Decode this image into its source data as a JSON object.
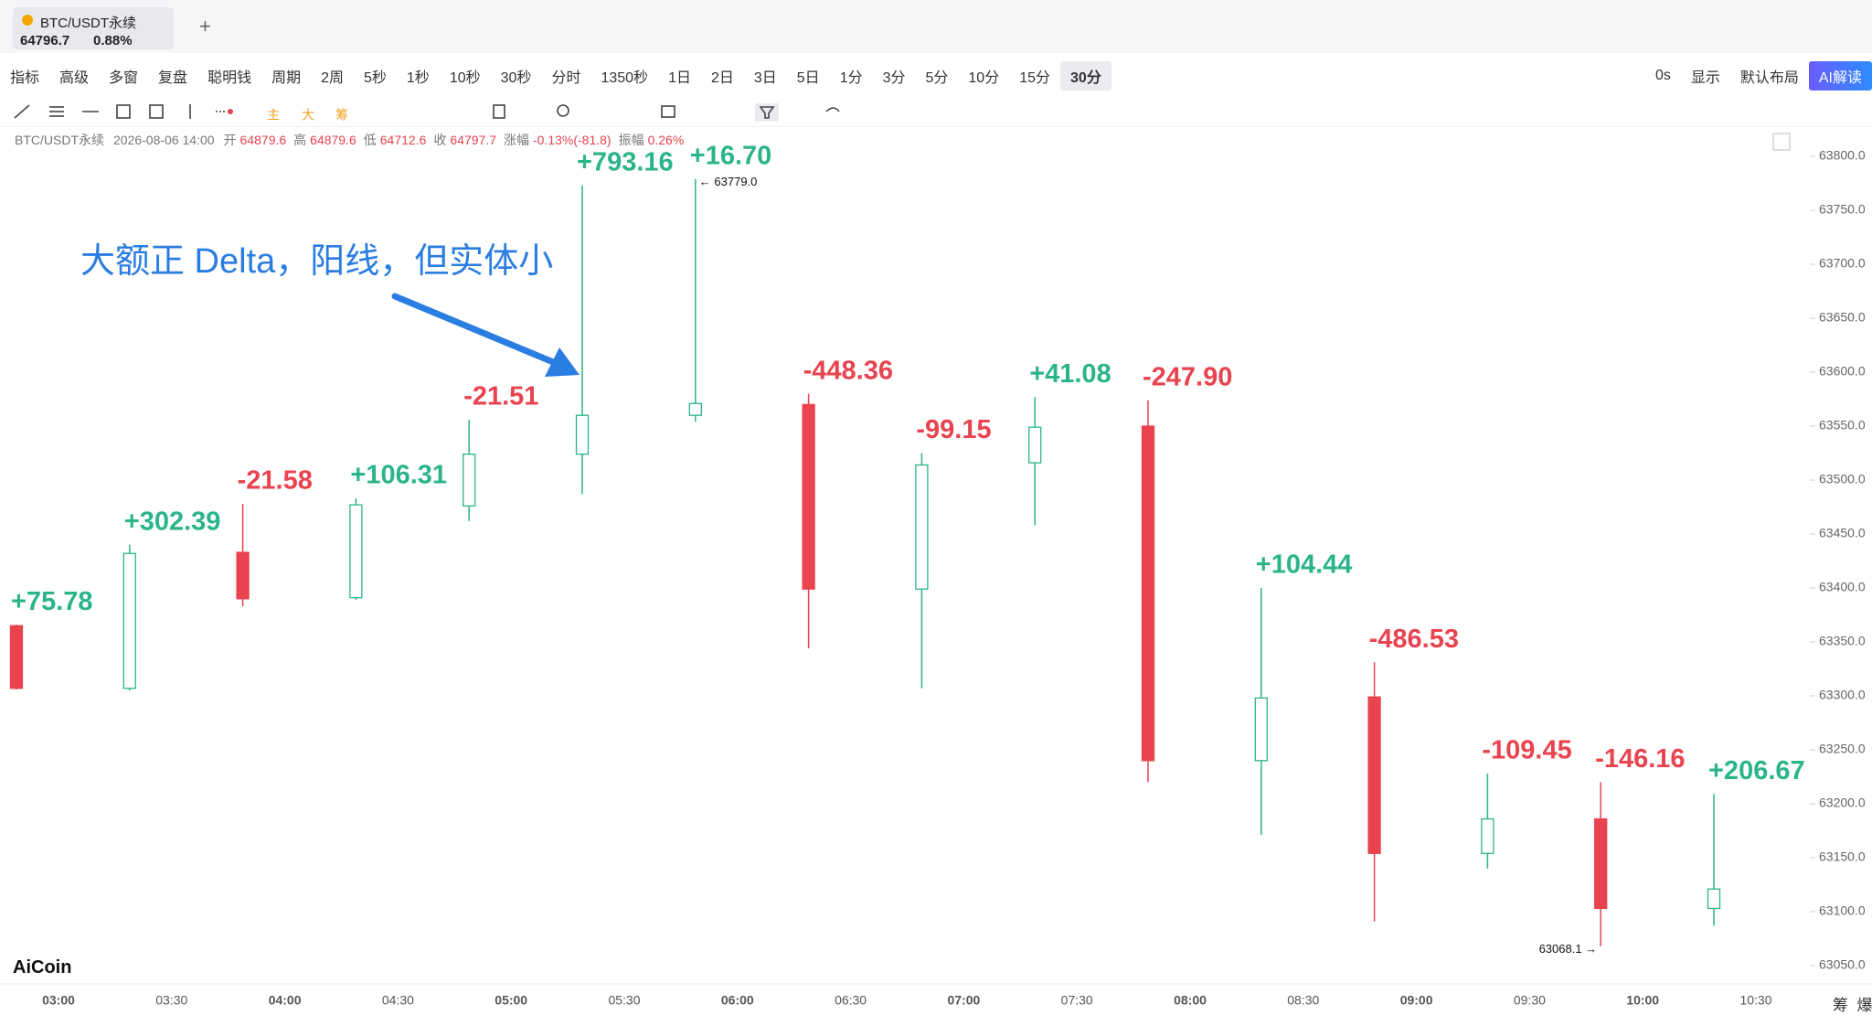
{
  "header": {
    "tab_title": "BTC/USDT永续",
    "price": "64796.7",
    "change": "0.88%",
    "add_tab": "+"
  },
  "toolbar": {
    "items": [
      "指标",
      "高级",
      "多窗",
      "复盘",
      "聪明钱",
      "周期",
      "2周",
      "5秒",
      "1秒",
      "10秒",
      "30秒",
      "分时",
      "1350秒",
      "1日",
      "2日",
      "3日",
      "5日",
      "1分",
      "3分",
      "5分",
      "10分",
      "15分",
      "30分"
    ],
    "active": "30分",
    "right_items": [
      "0s",
      "显示",
      "默认布局"
    ],
    "ai_button": "AI解读"
  },
  "info_row": {
    "symbol": "BTC/USDT永续",
    "time": "2026-08-06 14:00",
    "fields": [
      [
        "开",
        "64879.6"
      ],
      [
        "高",
        "64879.6"
      ],
      [
        "低",
        "64712.6"
      ],
      [
        "收",
        "64797.7"
      ],
      [
        "涨幅",
        "-0.13%(-81.8)"
      ],
      [
        "振幅",
        "0.26%"
      ]
    ]
  },
  "logo": "AiCoin",
  "side_labels": [
    "筹",
    "爆"
  ],
  "chart_data": {
    "type": "candlestick",
    "x": [
      "03:00",
      "03:30",
      "04:00",
      "04:30",
      "05:00",
      "05:30",
      "06:00",
      "06:30",
      "07:00",
      "07:30",
      "08:00",
      "08:30",
      "09:00",
      "09:30",
      "10:00",
      "10:30"
    ],
    "open": [
      63365,
      63307,
      63433,
      63391,
      63476,
      63524,
      63560,
      63570,
      63399,
      63516,
      63550,
      63240,
      63299,
      63154,
      63186,
      63103
    ],
    "high": [
      63366,
      63440,
      63478,
      63483,
      63556,
      63773,
      63779,
      63580,
      63525,
      63577,
      63574,
      63400,
      63331,
      63228,
      63220,
      63209
    ],
    "low": [
      63306,
      63305,
      63383,
      63389,
      63462,
      63487,
      63554,
      63344,
      63307,
      63458,
      63220,
      63171,
      63091,
      63140,
      63068,
      63087
    ],
    "close": [
      63307,
      63432,
      63390,
      63477,
      63524,
      63560,
      63571,
      63399,
      63514,
      63549,
      63240,
      63298,
      63154,
      63186,
      63103,
      63121
    ],
    "delta": {
      "values": [
        75.78,
        302.39,
        -21.58,
        106.31,
        -21.51,
        793.16,
        16.7,
        -448.36,
        -99.15,
        41.08,
        -247.9,
        104.44,
        -486.53,
        -109.45,
        -146.16,
        206.67
      ],
      "value_labels": [
        "+75.78",
        "+302.39",
        "-21.58",
        "+106.31",
        "-21.51",
        "+793.16",
        "+16.70",
        "-448.36",
        "-99.15",
        "+41.08",
        "-247.90",
        "+104.44",
        "-486.53",
        "-109.45",
        "-146.16",
        "+206.67"
      ]
    },
    "up_color": "#2bb48a",
    "down_color": "#e8434f",
    "ylim": [
      63030,
      63830
    ],
    "yticks": [
      {
        "value": 63050,
        "label": "63050.0"
      },
      {
        "value": 63100,
        "label": "63100.0"
      },
      {
        "value": 63150,
        "label": "63150.0"
      },
      {
        "value": 63200,
        "label": "63200.0"
      },
      {
        "value": 63250,
        "label": "63250.0"
      },
      {
        "value": 63300,
        "label": "63300.0"
      },
      {
        "value": 63350,
        "label": "63350.0"
      },
      {
        "value": 63400,
        "label": "63400.0"
      },
      {
        "value": 63450,
        "label": "63450.0"
      },
      {
        "value": 63500,
        "label": "63500.0"
      },
      {
        "value": 63550,
        "label": "63550.0"
      },
      {
        "value": 63600,
        "label": "63600.0"
      },
      {
        "value": 63650,
        "label": "63650.0"
      },
      {
        "value": 63700,
        "label": "63700.0"
      },
      {
        "value": 63750,
        "label": "63750.0"
      },
      {
        "value": 63800,
        "label": "63800.0"
      }
    ],
    "annotations": [
      {
        "text": "← 63779.0",
        "index": 6,
        "at": "high"
      },
      {
        "text": "63068.1 →",
        "index": 14,
        "at": "low"
      }
    ],
    "callout": "大额正 Delta，阳线，但实体小"
  }
}
